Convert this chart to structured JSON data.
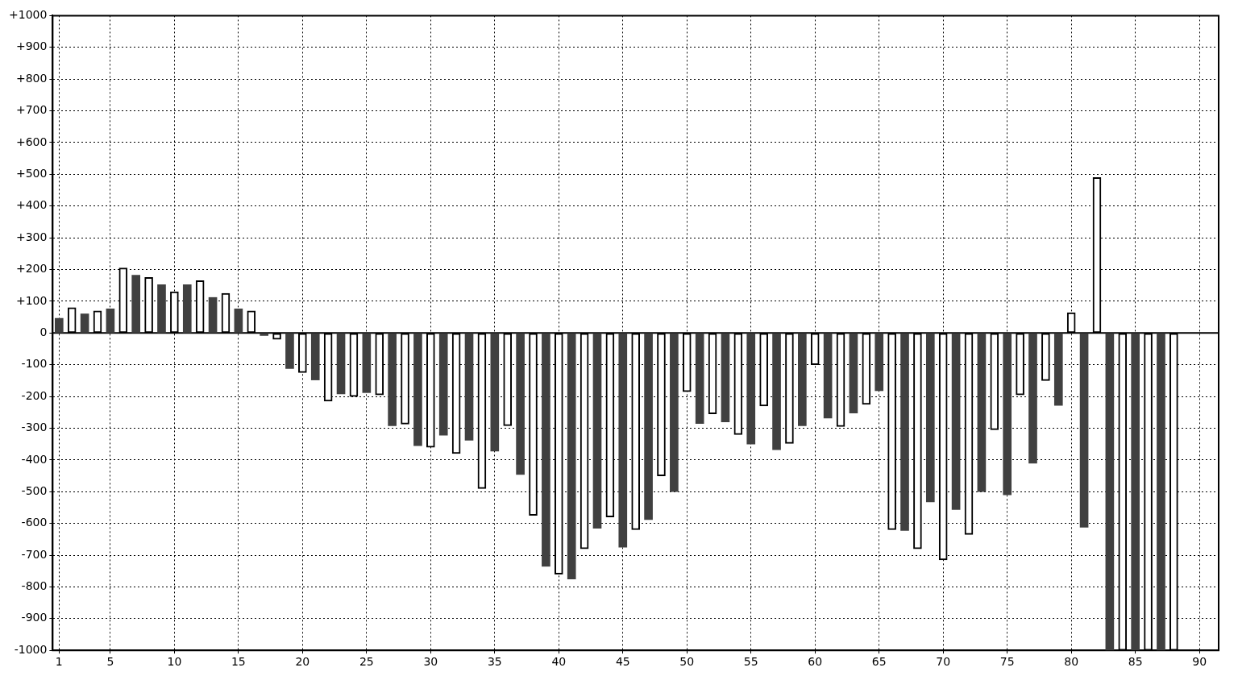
{
  "chart_data": {
    "type": "bar",
    "xlim": [
      0.5,
      91.5
    ],
    "xticks": [
      1,
      5,
      10,
      15,
      20,
      25,
      30,
      35,
      40,
      45,
      50,
      55,
      60,
      65,
      70,
      75,
      80,
      85,
      90
    ],
    "ylim": [
      -1000,
      1000
    ],
    "yticks": [
      {
        "value": -1000,
        "label": "-1000"
      },
      {
        "value": -900,
        "label": "-900"
      },
      {
        "value": -800,
        "label": "-800"
      },
      {
        "value": -700,
        "label": "-700"
      },
      {
        "value": -600,
        "label": "-600"
      },
      {
        "value": -500,
        "label": "-500"
      },
      {
        "value": -400,
        "label": "-400"
      },
      {
        "value": -300,
        "label": "-300"
      },
      {
        "value": -200,
        "label": "-200"
      },
      {
        "value": -100,
        "label": "-100"
      },
      0,
      {
        "value": 100,
        "label": "+100"
      },
      {
        "value": 200,
        "label": "+200"
      },
      {
        "value": 300,
        "label": "+300"
      },
      {
        "value": 400,
        "label": "+400"
      },
      {
        "value": 500,
        "label": "+500"
      },
      {
        "value": 600,
        "label": "+600"
      },
      {
        "value": 700,
        "label": "+700"
      },
      {
        "value": 800,
        "label": "+800"
      },
      {
        "value": 900,
        "label": "+900"
      },
      {
        "value": 1000,
        "label": "+1000"
      }
    ],
    "grid": true,
    "legend": false,
    "series": [
      {
        "color": "#404040",
        "x": [
          1,
          3,
          5,
          7,
          9,
          11,
          13,
          15,
          17,
          19,
          21,
          23,
          25,
          27,
          29,
          31,
          33,
          35,
          37,
          39,
          41,
          43,
          45,
          47,
          49,
          51,
          53,
          55,
          57,
          59,
          61,
          63,
          65,
          67,
          69,
          71,
          73,
          75,
          77,
          79,
          81,
          83,
          85,
          87
        ],
        "values": [
          46,
          60,
          76,
          182,
          152,
          152,
          112,
          76,
          -8,
          -112,
          -148,
          -192,
          -188,
          -292,
          -355,
          -322,
          -338,
          -372,
          -446,
          -735,
          -775,
          -615,
          -675,
          -588,
          -500,
          -285,
          -280,
          -350,
          -368,
          -292,
          -268,
          -252,
          -182,
          -622,
          -532,
          -556,
          -500,
          -510,
          -410,
          -228,
          -612,
          -1000,
          -1000,
          -1000
        ]
      },
      {
        "color": "#ffffff",
        "x": [
          2,
          4,
          6,
          8,
          10,
          12,
          14,
          16,
          18,
          20,
          22,
          24,
          26,
          28,
          30,
          32,
          34,
          36,
          38,
          40,
          42,
          44,
          46,
          48,
          50,
          52,
          54,
          56,
          58,
          60,
          62,
          64,
          66,
          68,
          70,
          72,
          74,
          76,
          78,
          80,
          82,
          84,
          86,
          88
        ],
        "values": [
          80,
          70,
          205,
          175,
          130,
          165,
          125,
          70,
          -20,
          -125,
          -215,
          -200,
          -195,
          -287,
          -360,
          -380,
          -490,
          -292,
          -575,
          -760,
          -680,
          -580,
          -620,
          -450,
          -185,
          -255,
          -320,
          -230,
          -348,
          -100,
          -295,
          -225,
          -620,
          -680,
          -715,
          -635,
          -305,
          -195,
          -150,
          64,
          490,
          -1000,
          -1000,
          -1000
        ]
      }
    ]
  }
}
